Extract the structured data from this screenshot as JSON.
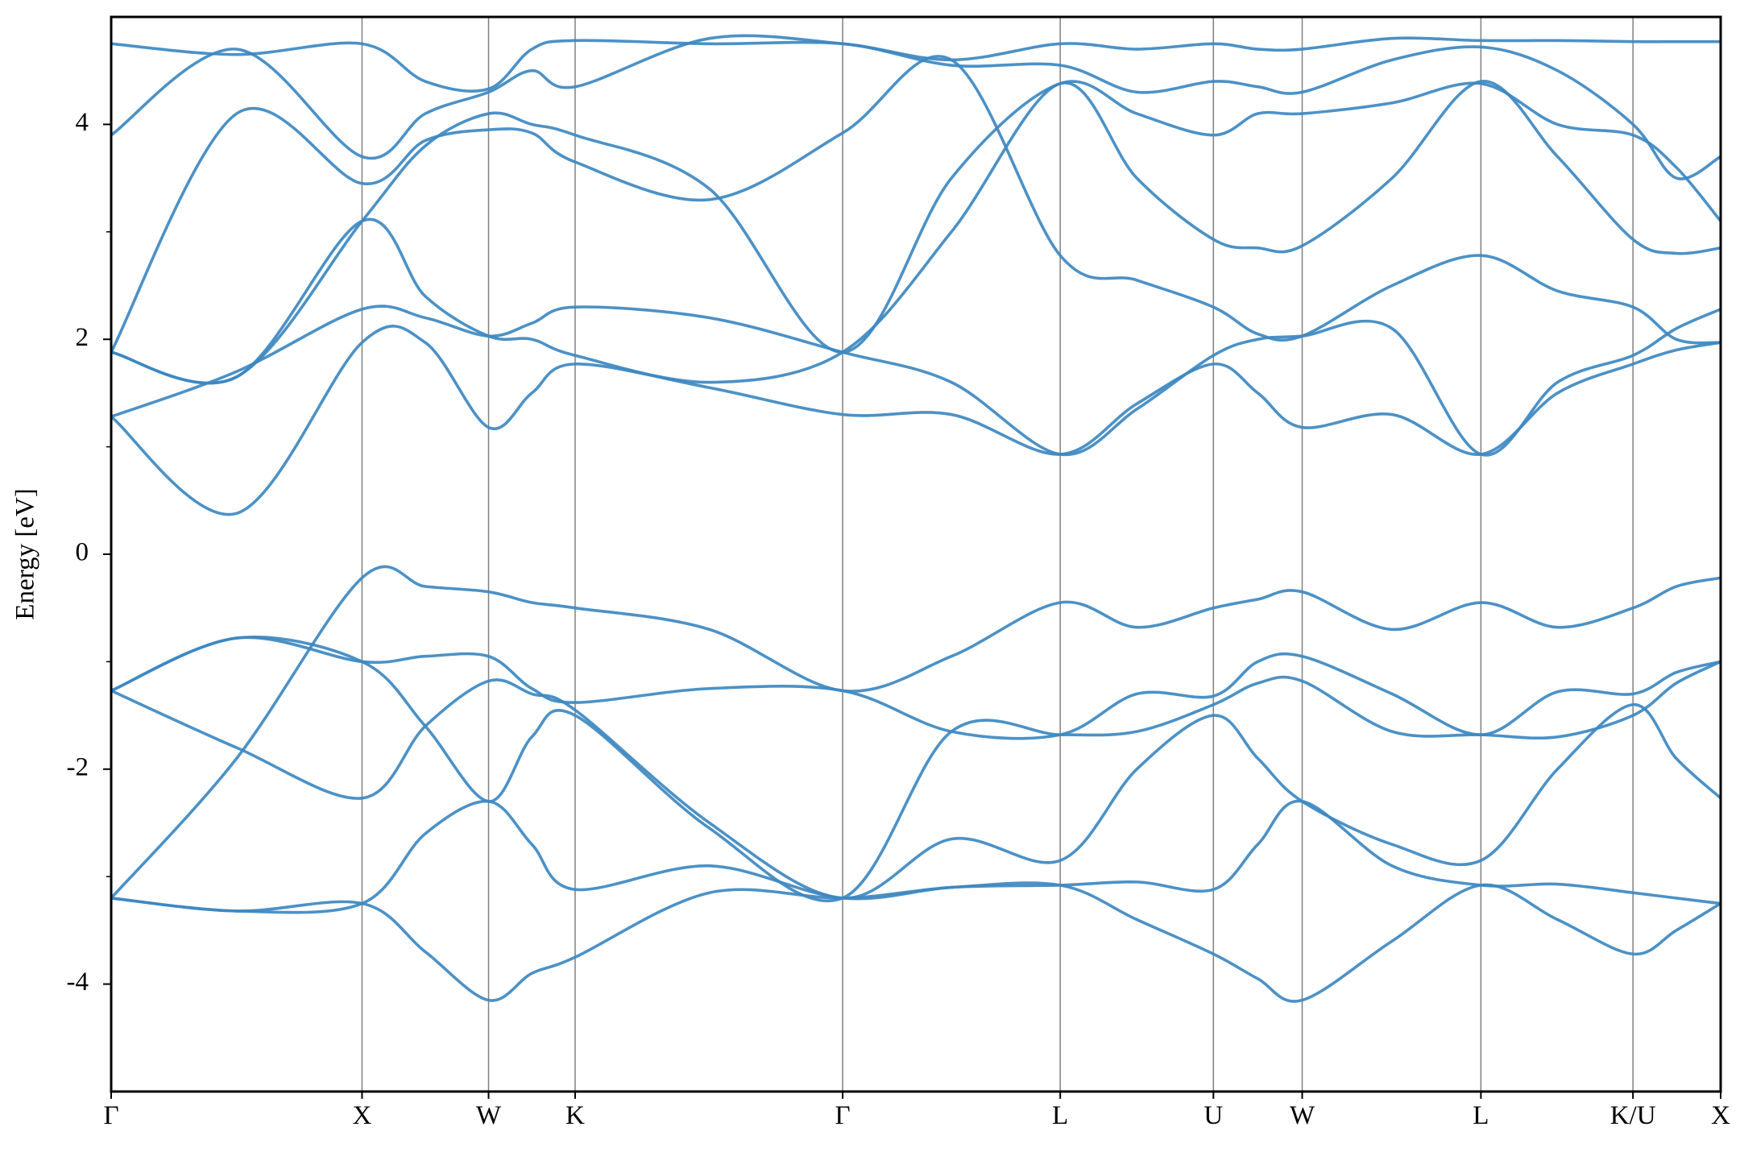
{
  "chart_data": {
    "type": "line",
    "ylabel": "Energy [eV]",
    "color": "#3d88c1",
    "xlim": [
      0,
      14.5
    ],
    "xticks": [
      {
        "value": 0,
        "label": "Γ"
      },
      {
        "value": 2.26,
        "label": "X"
      },
      {
        "value": 3.4,
        "label": "W"
      },
      {
        "value": 4.18,
        "label": "K"
      },
      {
        "value": 6.59,
        "label": "Γ"
      },
      {
        "value": 8.55,
        "label": "L"
      },
      {
        "value": 9.93,
        "label": "U"
      },
      {
        "value": 10.73,
        "label": "W"
      },
      {
        "value": 12.34,
        "label": "L"
      },
      {
        "value": 13.71,
        "label": "K/U"
      },
      {
        "value": 14.5,
        "label": "X"
      }
    ],
    "ylim": [
      -5,
      5
    ],
    "yticks": [
      -4,
      -2,
      0,
      2,
      4
    ],
    "yminorticks": [
      -3,
      -1,
      1,
      3
    ],
    "x": [
      0,
      1.13,
      2.26,
      2.83,
      3.4,
      3.79,
      4.18,
      5.39,
      6.59,
      7.57,
      8.55,
      9.24,
      9.93,
      10.33,
      10.73,
      11.54,
      12.34,
      13.03,
      13.71,
      14.1,
      14.5
    ],
    "series": [
      {
        "values": [
          -3.2,
          -1.9,
          -0.22,
          -0.3,
          -0.35,
          -0.45,
          -0.5,
          -0.7,
          -1.27,
          -0.95,
          -0.45,
          -0.68,
          -0.5,
          -0.42,
          -0.35,
          -0.7,
          -0.45,
          -0.68,
          -0.5,
          -0.3,
          -0.22
        ]
      },
      {
        "values": [
          -1.27,
          -0.78,
          -1.0,
          -0.95,
          -0.95,
          -1.25,
          -1.38,
          -1.25,
          -1.27,
          -1.65,
          -1.68,
          -1.3,
          -1.32,
          -1.0,
          -0.95,
          -1.3,
          -1.68,
          -1.28,
          -1.3,
          -1.1,
          -1.0
        ]
      },
      {
        "values": [
          -1.27,
          -0.78,
          -1.0,
          -1.6,
          -2.3,
          -1.7,
          -1.5,
          -2.55,
          -3.2,
          -1.65,
          -1.68,
          -1.65,
          -1.4,
          -1.2,
          -1.18,
          -1.65,
          -1.68,
          -1.7,
          -1.5,
          -1.2,
          -1.0
        ]
      },
      {
        "values": [
          -1.27,
          -1.8,
          -2.27,
          -1.6,
          -1.18,
          -1.3,
          -1.45,
          -2.5,
          -3.2,
          -2.65,
          -2.85,
          -2.0,
          -1.5,
          -1.9,
          -2.3,
          -2.7,
          -2.85,
          -2.0,
          -1.4,
          -1.9,
          -2.27
        ]
      },
      {
        "values": [
          -3.2,
          -3.32,
          -3.25,
          -2.6,
          -2.3,
          -2.7,
          -3.12,
          -2.9,
          -3.2,
          -3.1,
          -3.08,
          -3.05,
          -3.12,
          -2.7,
          -2.3,
          -2.9,
          -3.08,
          -3.07,
          -3.15,
          -3.2,
          -3.25
        ]
      },
      {
        "values": [
          -3.2,
          -3.32,
          -3.25,
          -3.7,
          -4.15,
          -3.9,
          -3.75,
          -3.15,
          -3.2,
          -3.1,
          -3.08,
          -3.4,
          -3.72,
          -3.95,
          -4.15,
          -3.6,
          -3.08,
          -3.4,
          -3.72,
          -3.5,
          -3.25
        ]
      },
      {
        "values": [
          1.28,
          0.38,
          1.97,
          1.97,
          1.18,
          1.5,
          1.77,
          1.55,
          1.3,
          1.3,
          0.93,
          1.4,
          1.77,
          1.5,
          1.18,
          1.3,
          0.93,
          1.5,
          1.77,
          1.9,
          1.97
        ]
      },
      {
        "values": [
          1.28,
          1.7,
          2.28,
          2.2,
          2.03,
          2.15,
          2.3,
          2.2,
          1.88,
          1.6,
          0.93,
          1.35,
          1.85,
          2.0,
          2.03,
          2.1,
          0.93,
          1.6,
          1.85,
          2.1,
          2.28
        ]
      },
      {
        "values": [
          1.88,
          1.65,
          3.1,
          2.4,
          2.03,
          2.0,
          1.85,
          1.6,
          1.88,
          3.0,
          4.38,
          3.5,
          2.93,
          2.85,
          2.87,
          3.5,
          4.4,
          3.7,
          2.93,
          2.8,
          2.85
        ]
      },
      {
        "values": [
          1.88,
          1.65,
          3.1,
          3.8,
          4.1,
          4.0,
          3.9,
          3.4,
          1.88,
          3.5,
          4.38,
          4.1,
          3.9,
          4.1,
          4.1,
          4.2,
          4.38,
          4.0,
          3.9,
          3.6,
          3.1
        ]
      },
      {
        "values": [
          1.88,
          4.1,
          3.45,
          3.85,
          3.95,
          3.92,
          3.65,
          3.3,
          3.92,
          4.6,
          2.78,
          2.55,
          2.3,
          2.05,
          2.03,
          2.5,
          2.78,
          2.45,
          2.3,
          2.0,
          1.97
        ]
      },
      {
        "values": [
          3.9,
          4.7,
          3.7,
          4.1,
          4.3,
          4.5,
          4.35,
          4.8,
          4.75,
          4.6,
          4.75,
          4.7,
          4.75,
          4.7,
          4.7,
          4.8,
          4.78,
          4.78,
          4.77,
          4.77,
          4.77
        ]
      },
      {
        "values": [
          4.75,
          4.65,
          4.75,
          4.4,
          4.33,
          4.7,
          4.78,
          4.75,
          4.75,
          4.55,
          4.55,
          4.3,
          4.4,
          4.35,
          4.3,
          4.6,
          4.72,
          4.5,
          4.0,
          3.5,
          3.7
        ]
      }
    ]
  }
}
